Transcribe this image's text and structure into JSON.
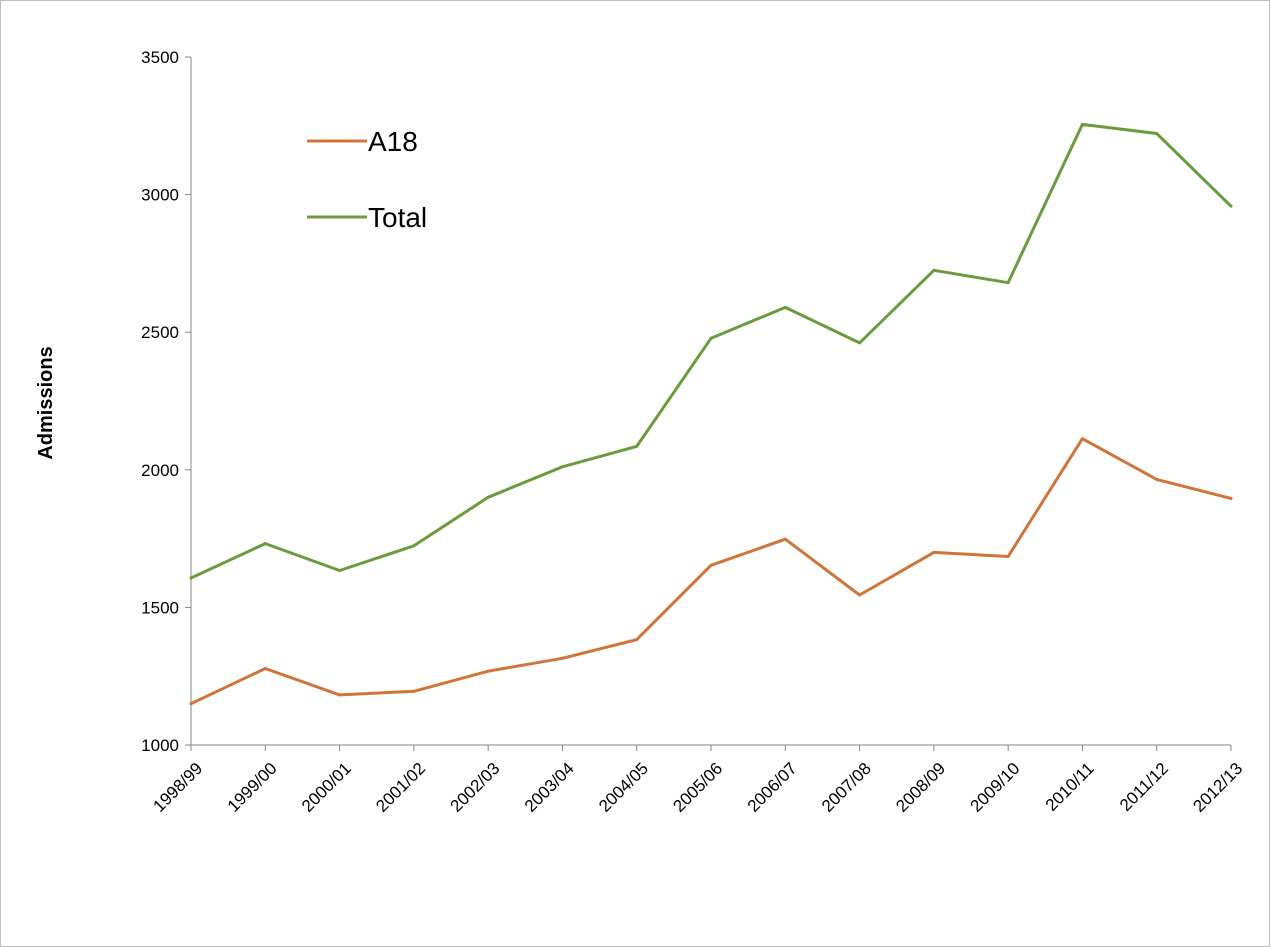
{
  "chart_data": {
    "type": "line",
    "title": "",
    "xlabel": "",
    "ylabel": "Admissions",
    "ylim": [
      1000,
      3500
    ],
    "yticks": [
      1000,
      1500,
      2000,
      2500,
      3000,
      3500
    ],
    "grid": false,
    "legend_position": "top-left",
    "categories": [
      "1998/99",
      "1999/00",
      "2000/01",
      "2001/02",
      "2002/03",
      "2003/04",
      "2004/05",
      "2005/06",
      "2006/07",
      "2007/08",
      "2008/09",
      "2009/10",
      "2010/11",
      "2011/12",
      "2012/13"
    ],
    "series": [
      {
        "name": "A18",
        "color": "#D0743A",
        "values": [
          1150,
          1278,
          1182,
          1195,
          1268,
          1315,
          1383,
          1653,
          1748,
          1545,
          1700,
          1685,
          2113,
          1965,
          1896
        ]
      },
      {
        "name": "Total",
        "color": "#6A9C3E",
        "values": [
          1607,
          1732,
          1634,
          1724,
          1900,
          2011,
          2085,
          2478,
          2590,
          2461,
          2725,
          2680,
          3255,
          3222,
          2958
        ]
      }
    ]
  }
}
